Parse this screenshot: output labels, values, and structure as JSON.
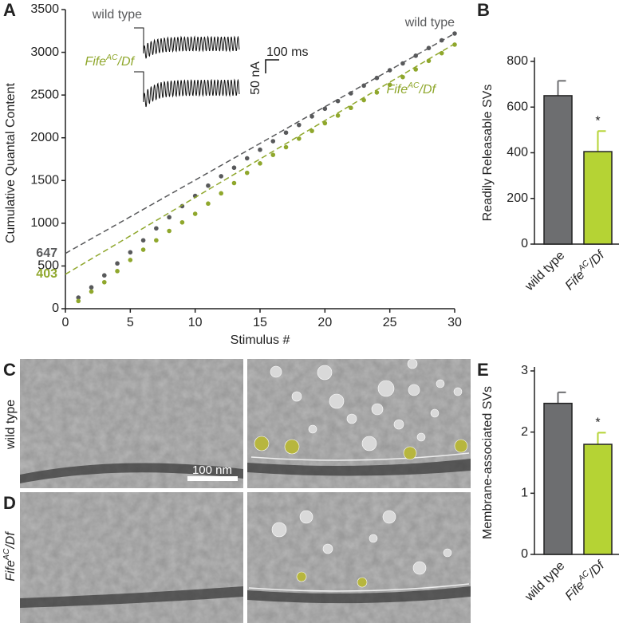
{
  "panels": {
    "letters": [
      "A",
      "B",
      "C",
      "D",
      "E"
    ]
  },
  "images": {
    "rows": [
      "wild type",
      [
        "Fife",
        "AC",
        "/Df"
      ]
    ],
    "scale_bar": "100 nm"
  },
  "chart_data": [
    {
      "type": "scatter",
      "ylabel": "Cumulative Quantal Content",
      "xlabel": "Stimulus #",
      "x": [
        1,
        2,
        3,
        4,
        5,
        6,
        7,
        8,
        9,
        10,
        11,
        12,
        13,
        14,
        15,
        16,
        17,
        18,
        19,
        20,
        21,
        22,
        23,
        24,
        25,
        26,
        27,
        28,
        29,
        30
      ],
      "xlim": [
        0,
        30
      ],
      "xticks": [
        0,
        5,
        10,
        15,
        20,
        25,
        30
      ],
      "ylim": [
        0,
        3500
      ],
      "yticks": [
        0,
        500,
        1000,
        1500,
        2000,
        2500,
        3000,
        3500
      ],
      "series": [
        {
          "name": "wild type",
          "color": "#58595b",
          "intercept": 647,
          "slope": 85.8,
          "values": [
            130,
            250,
            390,
            530,
            660,
            800,
            940,
            1070,
            1200,
            1320,
            1440,
            1550,
            1650,
            1760,
            1860,
            1960,
            2060,
            2150,
            2250,
            2340,
            2430,
            2520,
            2610,
            2700,
            2790,
            2870,
            2960,
            3050,
            3140,
            3220
          ]
        },
        {
          "name": [
            "Fife",
            "AC",
            "/Df"
          ],
          "color": "#8fa72c",
          "intercept": 403,
          "slope": 89.9,
          "values": [
            90,
            200,
            310,
            440,
            570,
            690,
            800,
            910,
            1010,
            1110,
            1230,
            1350,
            1470,
            1590,
            1700,
            1800,
            1890,
            1990,
            2080,
            2170,
            2260,
            2350,
            2440,
            2530,
            2620,
            2710,
            2800,
            2900,
            2990,
            3090
          ]
        }
      ],
      "inset": {
        "traces": [
          "wild type",
          [
            "Fife",
            "AC",
            "/Df"
          ]
        ],
        "scale_time": "100 ms",
        "scale_current": "50 nA"
      }
    },
    {
      "type": "bar",
      "ylabel": "Readily Releasable SVs",
      "categories": [
        "wild type",
        [
          "Fife",
          "AC",
          "/Df"
        ]
      ],
      "colors": [
        "#6d6e70",
        "#b5d334"
      ],
      "values": [
        650,
        405
      ],
      "errors": [
        65,
        90
      ],
      "annotations": [
        null,
        "*"
      ],
      "ylim": [
        0,
        800
      ],
      "yticks": [
        0,
        200,
        400,
        600,
        800
      ]
    },
    {
      "type": "bar",
      "ylabel": "Membrane-associated SVs",
      "categories": [
        "wild type",
        [
          "Fife",
          "AC",
          "/Df"
        ]
      ],
      "colors": [
        "#6d6e70",
        "#b5d334"
      ],
      "values": [
        2.47,
        1.8
      ],
      "errors": [
        0.18,
        0.19
      ],
      "annotations": [
        null,
        "*"
      ],
      "ylim": [
        0,
        3
      ],
      "yticks": [
        0,
        1,
        2,
        3
      ]
    }
  ]
}
